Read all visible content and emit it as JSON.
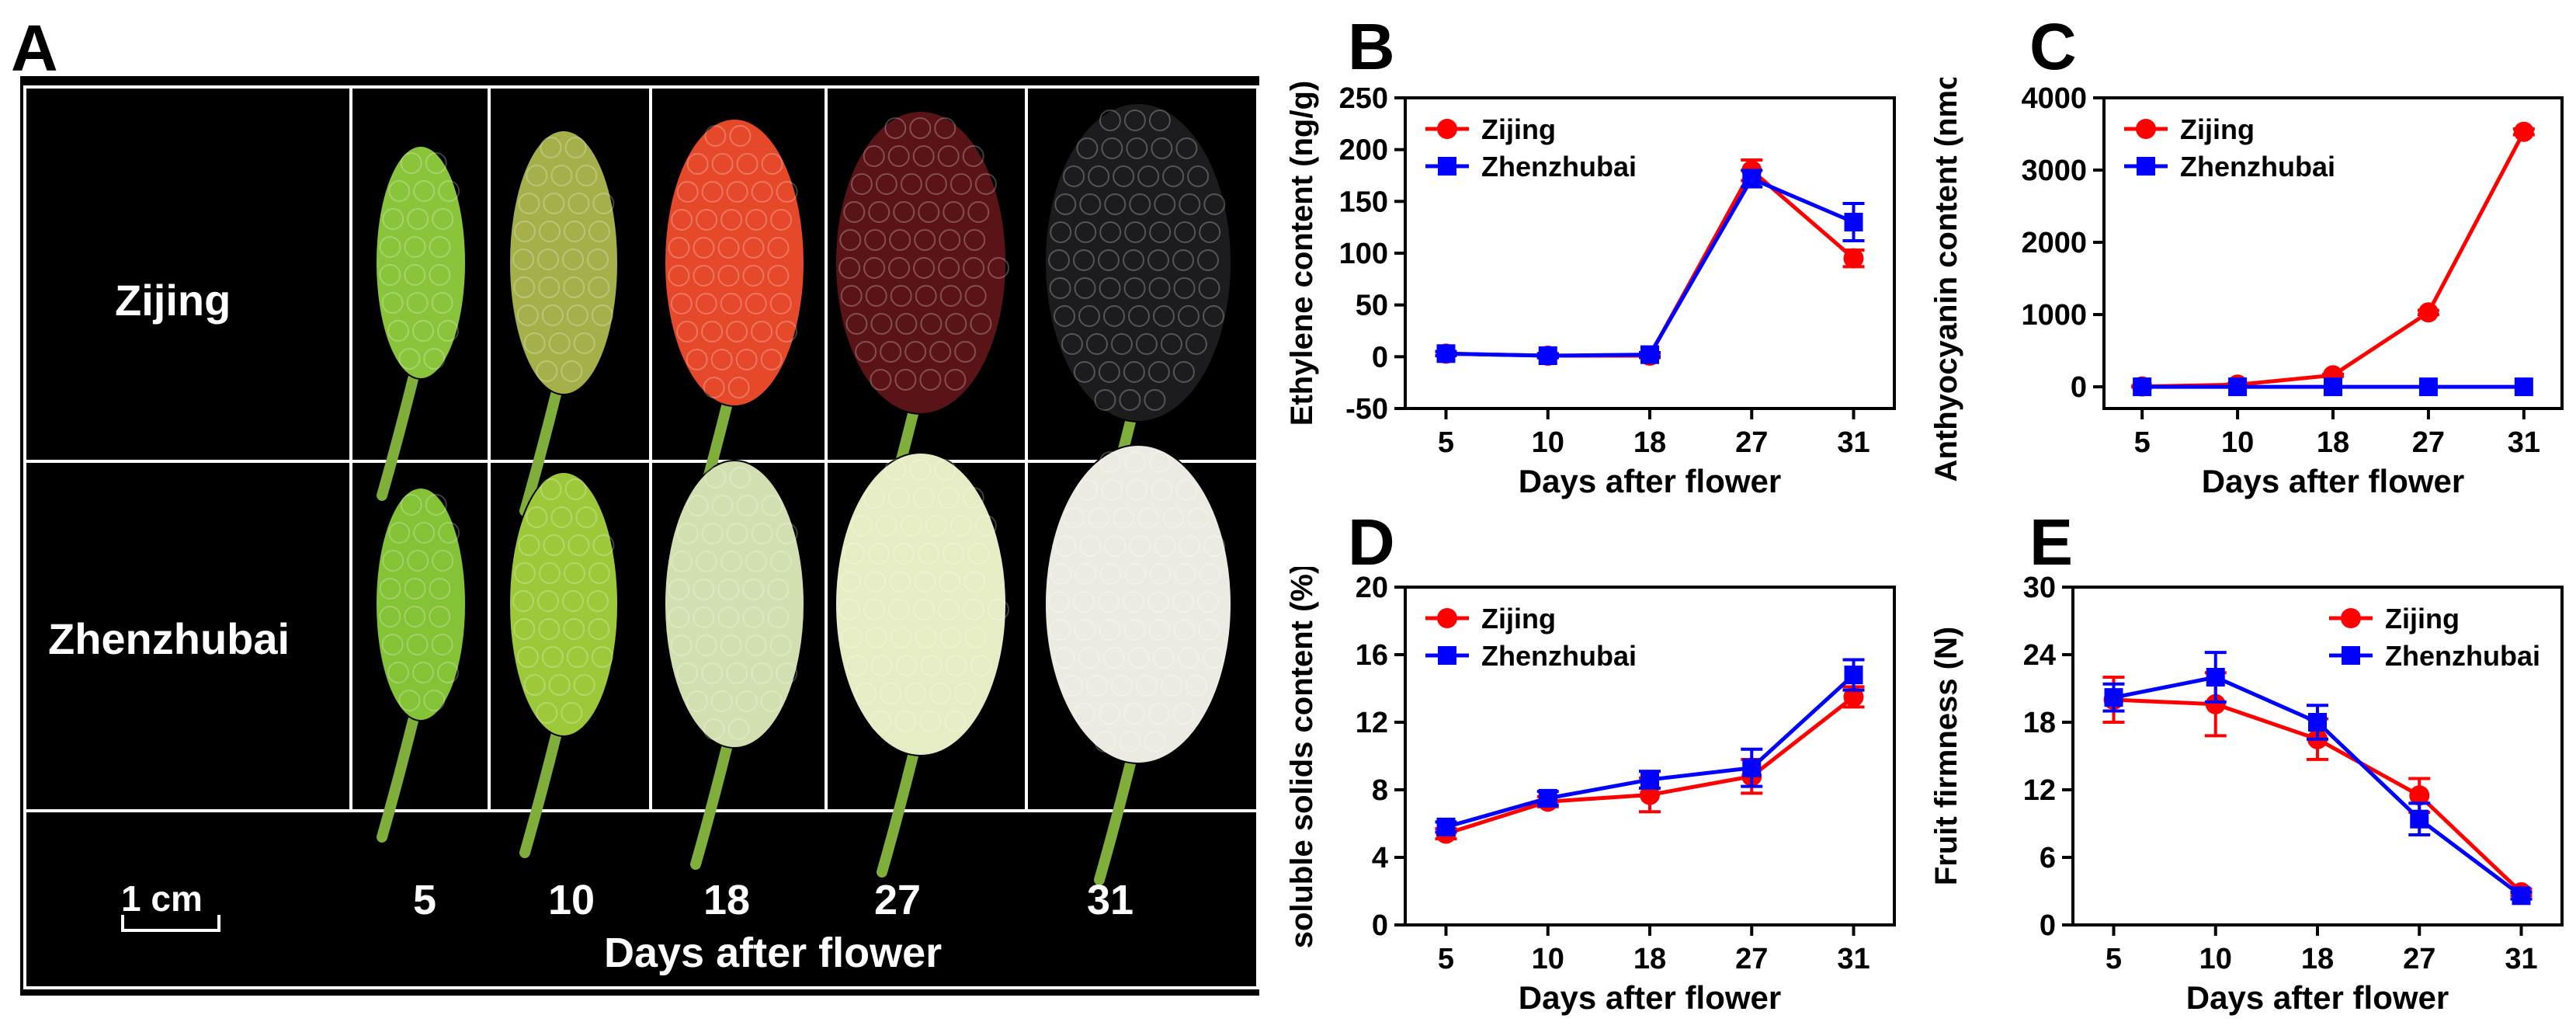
{
  "panel_a": {
    "letter": "A",
    "row_labels": [
      "Zijing",
      "Zhenzhubai"
    ],
    "day_labels": [
      "5",
      "10",
      "18",
      "27",
      "31"
    ],
    "scale_label": "1 cm",
    "axis_caption": "Days after flower",
    "colors": {
      "zijing": [
        "#8ac43a",
        "#a6b04a",
        "#e5492a",
        "#5a1418",
        "#1c1c1e"
      ],
      "zhenzhubai": [
        "#84c236",
        "#9cc83a",
        "#d2dfb0",
        "#e6edc4",
        "#ecebe2"
      ]
    }
  },
  "chart_data": [
    {
      "id": "B",
      "type": "line",
      "ylabel": "Ethylene content (ng/g)",
      "xlabel": "Days after flower",
      "categories": [
        "5",
        "10",
        "18",
        "27",
        "31"
      ],
      "ylim": [
        -50,
        250
      ],
      "yticks": [
        -50,
        0,
        50,
        100,
        150,
        200,
        250
      ],
      "legend_position": "top-left",
      "series": [
        {
          "name": "Zijing",
          "color": "#ff0000",
          "marker": "circle",
          "values": [
            3,
            1,
            1,
            180,
            95
          ],
          "errors": [
            2,
            2,
            2,
            10,
            8
          ]
        },
        {
          "name": "Zhenzhubai",
          "color": "#0000ff",
          "marker": "square",
          "values": [
            3,
            1,
            2,
            172,
            130
          ],
          "errors": [
            2,
            2,
            2,
            8,
            18
          ]
        }
      ]
    },
    {
      "id": "C",
      "type": "line",
      "ylabel": "Anthyocyanin content (nmol/g)",
      "xlabel": "Days after flower",
      "categories": [
        "5",
        "10",
        "18",
        "27",
        "31"
      ],
      "ylim": [
        -300,
        4000
      ],
      "yticks": [
        0,
        1000,
        2000,
        3000,
        4000
      ],
      "legend_position": "top-left",
      "series": [
        {
          "name": "Zijing",
          "color": "#ff0000",
          "marker": "circle",
          "values": [
            5,
            30,
            160,
            1030,
            3530
          ],
          "errors": [
            5,
            10,
            15,
            30,
            40
          ]
        },
        {
          "name": "Zhenzhubai",
          "color": "#0000ff",
          "marker": "square",
          "values": [
            0,
            0,
            0,
            0,
            0
          ],
          "errors": [
            0,
            0,
            0,
            0,
            0
          ]
        }
      ]
    },
    {
      "id": "D",
      "type": "line",
      "ylabel": "soluble solids content (%)",
      "xlabel": "Days after flower",
      "categories": [
        "5",
        "10",
        "18",
        "27",
        "31"
      ],
      "ylim": [
        0,
        20
      ],
      "yticks": [
        0,
        4,
        8,
        12,
        16,
        20
      ],
      "legend_position": "top-left",
      "series": [
        {
          "name": "Zijing",
          "color": "#ff0000",
          "marker": "circle",
          "values": [
            5.4,
            7.3,
            7.7,
            8.8,
            13.5
          ],
          "errors": [
            0.3,
            0.3,
            1.0,
            1.0,
            0.6
          ]
        },
        {
          "name": "Zhenzhubai",
          "color": "#0000ff",
          "marker": "square",
          "values": [
            5.8,
            7.5,
            8.6,
            9.3,
            14.8
          ],
          "errors": [
            0.3,
            0.4,
            0.5,
            1.1,
            0.9
          ]
        }
      ]
    },
    {
      "id": "E",
      "type": "line",
      "ylabel": "Fruit firmness (N)",
      "xlabel": "Days after flower",
      "categories": [
        "5",
        "10",
        "18",
        "27",
        "31"
      ],
      "ylim": [
        0,
        30
      ],
      "yticks": [
        0,
        6,
        12,
        18,
        24,
        30
      ],
      "legend_position": "top-right",
      "series": [
        {
          "name": "Zijing",
          "color": "#ff0000",
          "marker": "circle",
          "values": [
            20.0,
            19.6,
            16.5,
            11.5,
            2.9
          ],
          "errors": [
            2.0,
            2.8,
            1.8,
            1.5,
            0.3
          ]
        },
        {
          "name": "Zhenzhubai",
          "color": "#0000ff",
          "marker": "square",
          "values": [
            20.2,
            22.0,
            18.0,
            9.4,
            2.6
          ],
          "errors": [
            1.2,
            2.2,
            1.5,
            1.4,
            0.3
          ]
        }
      ]
    }
  ]
}
